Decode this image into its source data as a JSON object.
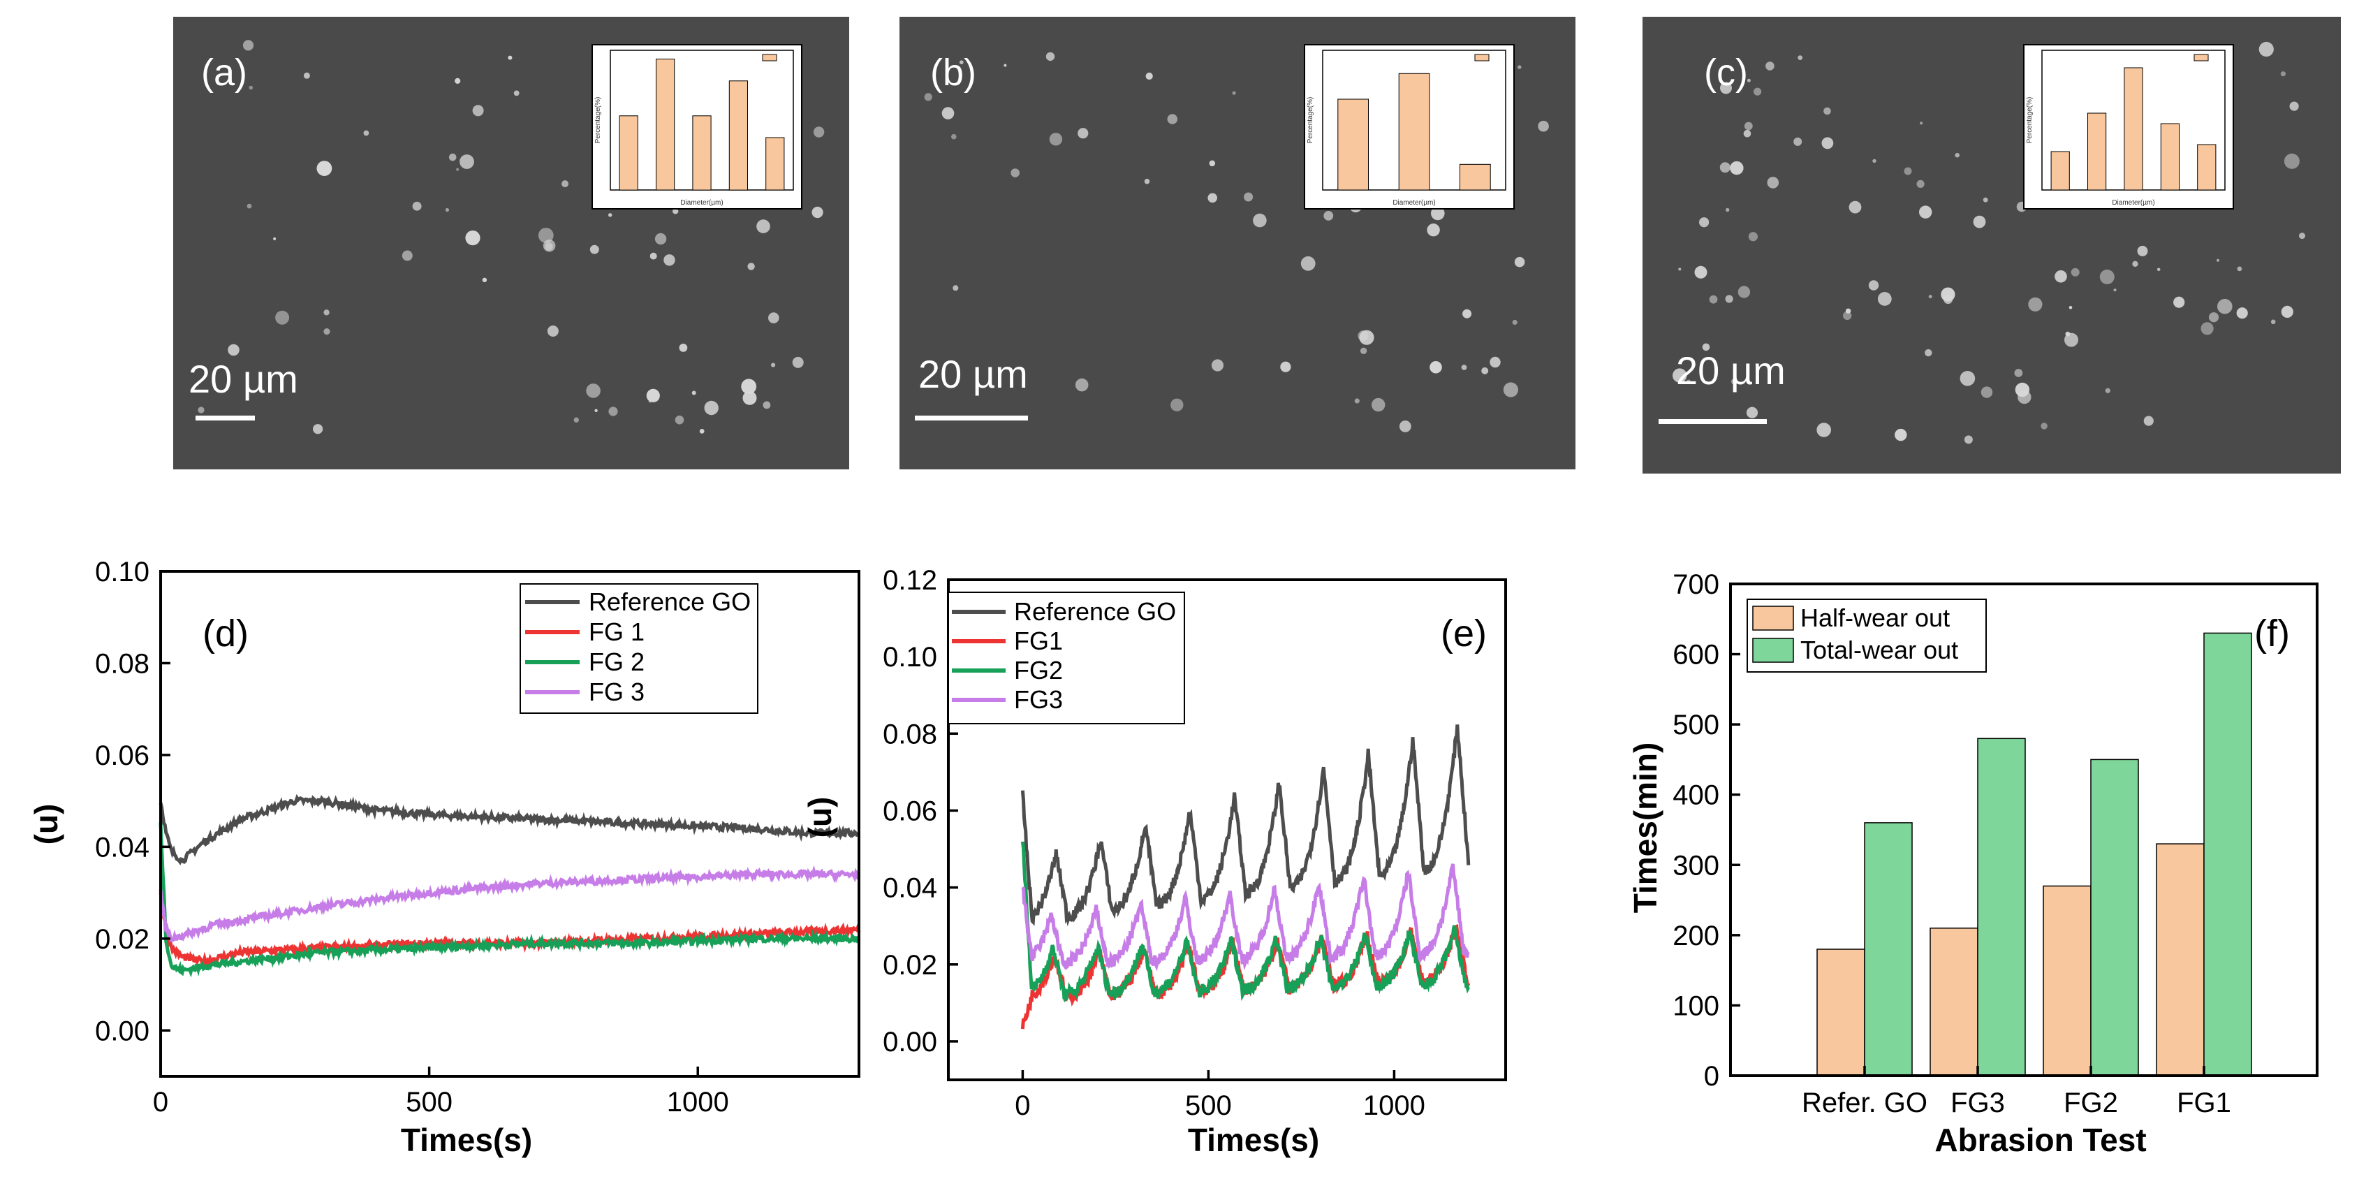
{
  "chart_data": [
    {
      "panel": "(a)",
      "type": "image",
      "scale_bar": "20 µm",
      "inset": {
        "type": "bar",
        "xlabel": "Diameter(µm)",
        "ylabel": "Percentage(%)",
        "values": [
          17,
          30,
          17,
          25,
          12
        ],
        "ylim": [
          0,
          32
        ]
      }
    },
    {
      "panel": "(b)",
      "type": "image",
      "scale_bar": "20 µm",
      "inset": {
        "type": "bar",
        "xlabel": "Diameter(µm)",
        "ylabel": "Percentage(%)",
        "values": [
          39,
          50,
          11
        ],
        "ylim": [
          0,
          60
        ]
      }
    },
    {
      "panel": "(c)",
      "type": "image",
      "scale_bar": "20 µm",
      "inset": {
        "type": "bar",
        "xlabel": "Diameter(µm)",
        "ylabel": "Percentage(%)",
        "values": [
          11,
          22,
          35,
          19,
          13
        ],
        "ylim": [
          0,
          40
        ]
      }
    },
    {
      "panel": "(d)",
      "type": "line",
      "xlabel": "Times(s)",
      "ylabel": "(u)",
      "xlim": [
        0,
        1300
      ],
      "ylim": [
        -0.01,
        0.1
      ],
      "xticks": [
        "0",
        "500",
        "1000"
      ],
      "yticks": [
        "0.00",
        "0.02",
        "0.04",
        "0.06",
        "0.08",
        "0.10"
      ],
      "series": [
        {
          "name": "Reference GO",
          "color": "#4d4d4d",
          "x": [
            0,
            10,
            20,
            40,
            80,
            150,
            250,
            300,
            400,
            500,
            700,
            900,
            1100,
            1200,
            1300
          ],
          "y": [
            0.05,
            0.043,
            0.039,
            0.037,
            0.041,
            0.046,
            0.05,
            0.05,
            0.048,
            0.047,
            0.046,
            0.045,
            0.044,
            0.043,
            0.043
          ]
        },
        {
          "name": "FG 1",
          "color": "#ee3333",
          "x": [
            0,
            10,
            20,
            40,
            80,
            150,
            300,
            500,
            700,
            900,
            1100,
            1300
          ],
          "y": [
            0.03,
            0.022,
            0.018,
            0.016,
            0.015,
            0.017,
            0.018,
            0.019,
            0.019,
            0.02,
            0.021,
            0.022
          ]
        },
        {
          "name": "FG 2",
          "color": "#16a058",
          "x": [
            0,
            10,
            20,
            40,
            80,
            150,
            300,
            500,
            700,
            900,
            1100,
            1300
          ],
          "y": [
            0.045,
            0.02,
            0.014,
            0.013,
            0.014,
            0.015,
            0.017,
            0.018,
            0.019,
            0.019,
            0.02,
            0.02
          ]
        },
        {
          "name": "FG 3",
          "color": "#c77de8",
          "x": [
            0,
            10,
            20,
            50,
            100,
            200,
            300,
            500,
            700,
            900,
            1100,
            1300
          ],
          "y": [
            0.03,
            0.022,
            0.02,
            0.021,
            0.023,
            0.025,
            0.027,
            0.03,
            0.032,
            0.033,
            0.034,
            0.034
          ]
        }
      ]
    },
    {
      "panel": "(e)",
      "type": "line",
      "xlabel": "Times(s)",
      "ylabel": "(u)",
      "xlim": [
        -200,
        1300
      ],
      "ylim": [
        -0.01,
        0.12
      ],
      "xticks": [
        "0",
        "500",
        "1000"
      ],
      "yticks": [
        "0.00",
        "0.02",
        "0.04",
        "0.06",
        "0.08",
        "0.10",
        "0.12"
      ],
      "period": 120,
      "series": [
        {
          "name": "Reference GO",
          "color": "#4d4d4d",
          "start": 0.064,
          "base_start": 0.031,
          "base_end": 0.046,
          "peak_start": 0.046,
          "peak_end": 0.083
        },
        {
          "name": "FG1",
          "color": "#ee3333",
          "start": 0.004,
          "base_start": 0.011,
          "base_end": 0.016,
          "peak_start": 0.022,
          "peak_end": 0.03
        },
        {
          "name": "FG2",
          "color": "#16a058",
          "start": 0.052,
          "base_start": 0.012,
          "base_end": 0.015,
          "peak_start": 0.024,
          "peak_end": 0.029
        },
        {
          "name": "FG3",
          "color": "#c77de8",
          "start": 0.04,
          "base_start": 0.02,
          "base_end": 0.023,
          "peak_start": 0.032,
          "peak_end": 0.046
        }
      ]
    },
    {
      "panel": "(f)",
      "type": "bar",
      "xlabel": "Abrasion Test",
      "ylabel": "Times(min)",
      "ylim": [
        0,
        700
      ],
      "yticks": [
        "0",
        "100",
        "200",
        "300",
        "400",
        "500",
        "600",
        "700"
      ],
      "categories": [
        "Refer. GO",
        "FG3",
        "FG2",
        "FG1"
      ],
      "series": [
        {
          "name": "Half-wear out",
          "color": "#f9c79d",
          "values": [
            180,
            210,
            270,
            330
          ]
        },
        {
          "name": "Total-wear out",
          "color": "#7fd69a",
          "values": [
            360,
            480,
            450,
            630
          ]
        }
      ]
    }
  ]
}
